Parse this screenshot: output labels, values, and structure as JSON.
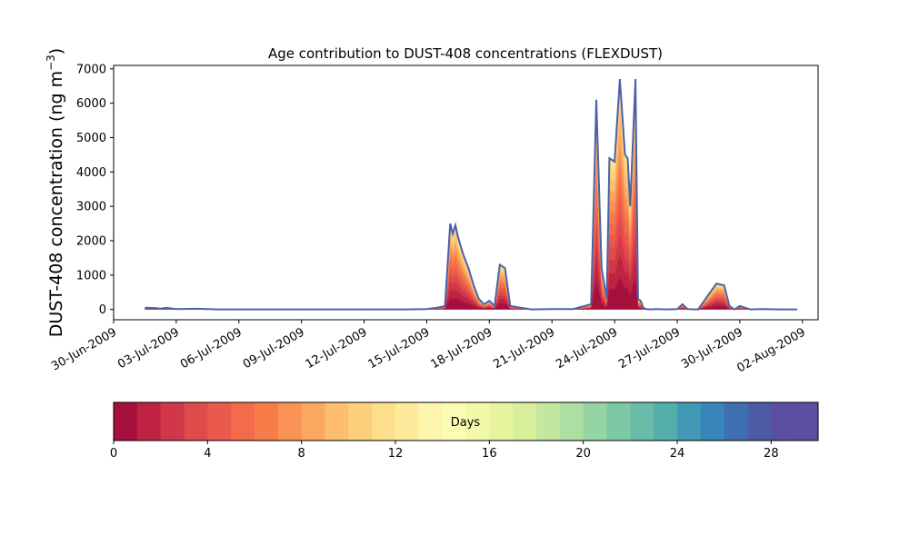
{
  "chart_data": {
    "type": "area",
    "title": "Age contribution to DUST-408 concentrations (FLEXDUST)",
    "ylabel": "DUST-408 concentration (ng m⁻³)",
    "ylabel_main": "DUST-408 concentration (ng m",
    "ylabel_unit_exp": "−3",
    "ylabel_close": ")",
    "xlabel": "",
    "ylim": [
      -300,
      7100
    ],
    "xlim": [
      "2009-06-30T00:00",
      "2009-08-02T18:00"
    ],
    "grid": false,
    "y_ticks": [
      0,
      1000,
      2000,
      3000,
      4000,
      5000,
      6000,
      7000
    ],
    "x_ticks": [
      {
        "date": "2009-06-30",
        "label": "30-Jun-2009"
      },
      {
        "date": "2009-07-03",
        "label": "03-Jul-2009"
      },
      {
        "date": "2009-07-06",
        "label": "06-Jul-2009"
      },
      {
        "date": "2009-07-09",
        "label": "09-Jul-2009"
      },
      {
        "date": "2009-07-12",
        "label": "12-Jul-2009"
      },
      {
        "date": "2009-07-15",
        "label": "15-Jul-2009"
      },
      {
        "date": "2009-07-18",
        "label": "18-Jul-2009"
      },
      {
        "date": "2009-07-21",
        "label": "21-Jul-2009"
      },
      {
        "date": "2009-07-24",
        "label": "24-Jul-2009"
      },
      {
        "date": "2009-07-27",
        "label": "27-Jul-2009"
      },
      {
        "date": "2009-07-30",
        "label": "30-Jul-2009"
      },
      {
        "date": "2009-08-02",
        "label": "02-Aug-2009"
      }
    ],
    "total_series": {
      "x": [
        "2009-07-01T12:00",
        "2009-07-02T00:00",
        "2009-07-02T06:00",
        "2009-07-02T12:00",
        "2009-07-03T00:00",
        "2009-07-04T00:00",
        "2009-07-05T00:00",
        "2009-07-10T00:00",
        "2009-07-14T00:00",
        "2009-07-15T00:00",
        "2009-07-15T12:00",
        "2009-07-15T21:00",
        "2009-07-16T03:00",
        "2009-07-16T06:00",
        "2009-07-16T09:00",
        "2009-07-16T12:00",
        "2009-07-16T18:00",
        "2009-07-17T00:00",
        "2009-07-17T06:00",
        "2009-07-17T12:00",
        "2009-07-17T18:00",
        "2009-07-18T00:00",
        "2009-07-18T06:00",
        "2009-07-18T12:00",
        "2009-07-18T18:00",
        "2009-07-19T00:00",
        "2009-07-20T00:00",
        "2009-07-21T00:00",
        "2009-07-22T00:00",
        "2009-07-22T21:00",
        "2009-07-23T03:00",
        "2009-07-23T09:00",
        "2009-07-23T15:00",
        "2009-07-23T18:00",
        "2009-07-24T00:00",
        "2009-07-24T06:00",
        "2009-07-24T12:00",
        "2009-07-24T15:00",
        "2009-07-24T18:00",
        "2009-07-25T00:00",
        "2009-07-25T03:00",
        "2009-07-25T06:00",
        "2009-07-25T09:00",
        "2009-07-25T12:00",
        "2009-07-25T18:00",
        "2009-07-26T00:00",
        "2009-07-26T12:00",
        "2009-07-27T00:00",
        "2009-07-27T06:00",
        "2009-07-27T12:00",
        "2009-07-28T00:00",
        "2009-07-28T21:00",
        "2009-07-29T06:00",
        "2009-07-29T12:00",
        "2009-07-29T18:00",
        "2009-07-30T00:00",
        "2009-07-30T12:00",
        "2009-07-31T00:00",
        "2009-08-01T00:00",
        "2009-08-01T18:00"
      ],
      "y": [
        50,
        40,
        20,
        45,
        10,
        20,
        0,
        0,
        0,
        10,
        50,
        100,
        2500,
        2200,
        2450,
        2100,
        1600,
        1200,
        700,
        300,
        150,
        250,
        100,
        1300,
        1200,
        100,
        0,
        10,
        10,
        150,
        6100,
        1200,
        300,
        4400,
        4300,
        6700,
        4500,
        4400,
        3000,
        6700,
        300,
        250,
        50,
        10,
        0,
        10,
        0,
        10,
        150,
        10,
        0,
        750,
        700,
        100,
        0,
        100,
        0,
        10,
        0,
        0
      ]
    },
    "age_bands": {
      "unit": "Days",
      "min": 0,
      "max": 30,
      "ticks": [
        0,
        4,
        8,
        12,
        16,
        20,
        24,
        28
      ],
      "colors": [
        "#a6103e",
        "#be2344",
        "#d03749",
        "#df4a4b",
        "#e9594c",
        "#f26b4a",
        "#f67d4a",
        "#f99355",
        "#fca95f",
        "#fdbe6f",
        "#fecf7d",
        "#fedd8c",
        "#feea9d",
        "#fef5ae",
        "#fbfdb6",
        "#f2f9a8",
        "#e6f49d",
        "#d7ee9b",
        "#c3e79e",
        "#ace0a2",
        "#95d4a4",
        "#7ec9a5",
        "#68bca7",
        "#54aeac",
        "#4199b6",
        "#3885bb",
        "#3f6fb0",
        "#4d5ba6",
        "#5b4fa4",
        "#5e4fa2"
      ]
    },
    "colorbar_label": "Days",
    "legend": "colorbar-below"
  }
}
